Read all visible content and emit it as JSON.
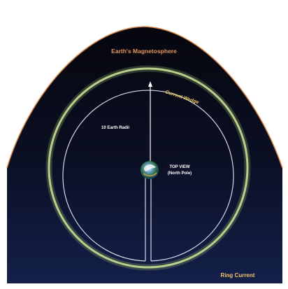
{
  "labels": {
    "magnetosphere": "Earth's Magnetosphere",
    "current_wedge": "Current Wedge",
    "radius": "10 Earth Radii",
    "view_line1": "TOP VIEW",
    "view_line2": "(North Pole)",
    "ring_current": "Ring Current"
  },
  "colors": {
    "space_top": "#05050a",
    "space_bottom": "#14204a",
    "magnetosphere_boundary": "#d9894a",
    "magnetosphere_label": "#e7935a",
    "ring_current": "#b8cf8a",
    "current_wedge_label": "#e8c95a",
    "orbit_lines": "#d8d8e8",
    "text_white": "#ffffff",
    "ring_current_label": "#f0c36a"
  }
}
